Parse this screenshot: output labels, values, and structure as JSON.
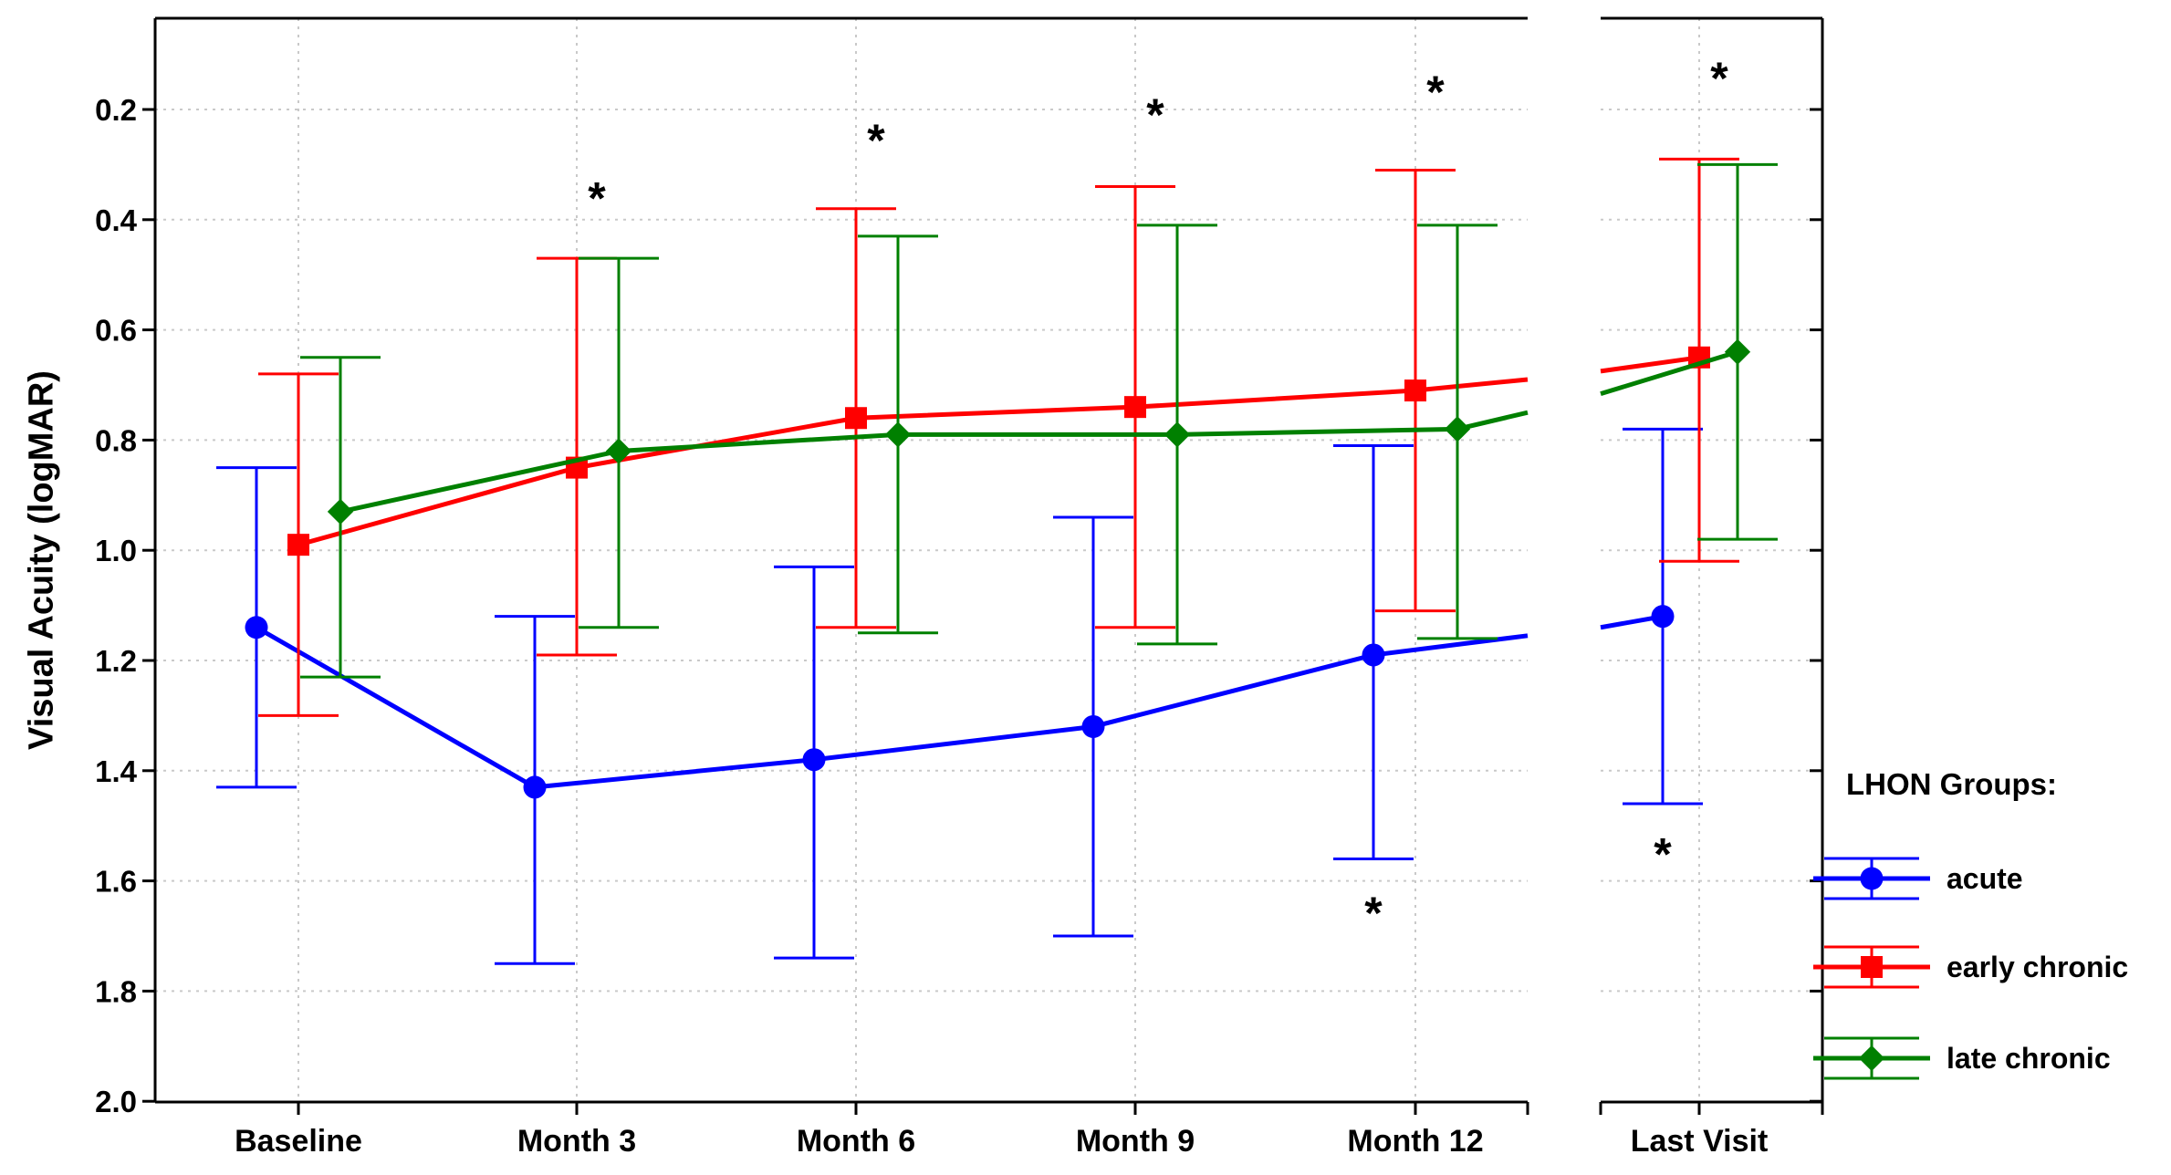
{
  "chart_data": {
    "type": "line",
    "title": "",
    "ylabel": "Visual Acuity (logMAR)",
    "y_ticks": [
      "0.2",
      "0.4",
      "0.6",
      "0.8",
      "1.0",
      "1.2",
      "1.4",
      "1.6",
      "1.8",
      "2.0"
    ],
    "y_axis_inverted": true,
    "ylim": [
      0.035,
      2.0
    ],
    "grid": "dotted",
    "categories": [
      "Baseline",
      "Month 3",
      "Month 6",
      "Month 9",
      "Month 12"
    ],
    "panel2_categories": [
      "Last Visit"
    ],
    "legend": {
      "title": "LHON Groups:",
      "position": "right",
      "entries": [
        "acute",
        "early chronic",
        "late chronic"
      ]
    },
    "series": [
      {
        "name": "acute",
        "color": "#0000FF",
        "marker": "circle",
        "means": [
          1.14,
          1.43,
          1.38,
          1.32,
          1.19
        ],
        "ci_min": [
          0.85,
          1.12,
          1.03,
          0.94,
          0.81
        ],
        "ci_max": [
          1.43,
          1.75,
          1.74,
          1.7,
          1.56
        ],
        "last_visit": {
          "mean": 1.12,
          "ci_min": 0.78,
          "ci_max": 1.46
        },
        "break_exit": 1.155,
        "break_enter": 1.14
      },
      {
        "name": "early chronic",
        "color": "#FF0000",
        "marker": "square",
        "means": [
          0.99,
          0.85,
          0.76,
          0.74,
          0.71
        ],
        "ci_min": [
          0.68,
          0.47,
          0.38,
          0.34,
          0.31
        ],
        "ci_max": [
          1.3,
          1.19,
          1.14,
          1.14,
          1.11
        ],
        "last_visit": {
          "mean": 0.65,
          "ci_min": 0.29,
          "ci_max": 1.02
        },
        "break_exit": 0.69,
        "break_enter": 0.675
      },
      {
        "name": "late chronic",
        "color": "#008000",
        "marker": "diamond",
        "means": [
          0.93,
          0.82,
          0.79,
          0.79,
          0.78
        ],
        "ci_min": [
          0.65,
          0.47,
          0.43,
          0.41,
          0.41
        ],
        "ci_max": [
          1.23,
          1.14,
          1.15,
          1.17,
          1.16
        ],
        "last_visit": {
          "mean": 0.64,
          "ci_min": 0.3,
          "ci_max": 0.98
        },
        "break_exit": 0.75,
        "break_enter": 0.716
      }
    ],
    "significance_asterisks": [
      {
        "timepoint": "Month 3",
        "placement": "above",
        "y_value": 0.36
      },
      {
        "timepoint": "Month 6",
        "placement": "above",
        "y_value": 0.255
      },
      {
        "timepoint": "Month 9",
        "placement": "above",
        "y_value": 0.208
      },
      {
        "timepoint": "Month 12",
        "placement": "above",
        "y_value": 0.167
      },
      {
        "timepoint": "Month 12",
        "placement": "below",
        "y_value": 1.657
      },
      {
        "timepoint": "Last Visit",
        "placement": "above",
        "y_value": 0.142
      },
      {
        "timepoint": "Last Visit",
        "placement": "below",
        "y_value": 1.55
      }
    ]
  }
}
